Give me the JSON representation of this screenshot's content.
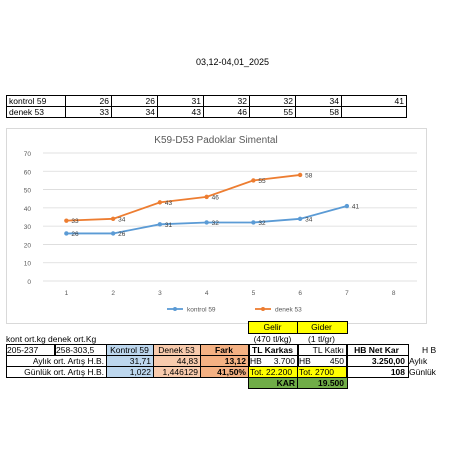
{
  "page": {
    "title": "03,12-04,01_2025"
  },
  "top_table": {
    "rows": [
      {
        "label": "kontrol 59",
        "values": [
          "26",
          "26",
          "31",
          "32",
          "32",
          "34",
          "41"
        ]
      },
      {
        "label": "denek 53",
        "values": [
          "33",
          "34",
          "43",
          "46",
          "55",
          "58",
          ""
        ]
      }
    ]
  },
  "chart_data": {
    "type": "line",
    "title": "K59-D53 Padoklar Simental",
    "x": [
      1,
      2,
      3,
      4,
      5,
      6,
      7,
      8
    ],
    "xlim": [
      0.5,
      8.5
    ],
    "ylim": [
      0,
      70
    ],
    "yticks": [
      0,
      10,
      20,
      30,
      40,
      50,
      60,
      70
    ],
    "grid": true,
    "legend": "bottom",
    "series": [
      {
        "name": "kontrol 59",
        "color": "#5b9bd5",
        "x": [
          1,
          2,
          3,
          4,
          5,
          6,
          7
        ],
        "values": [
          26,
          26,
          31,
          32,
          32,
          34,
          41
        ]
      },
      {
        "name": "denek 53",
        "color": "#ed7d31",
        "x": [
          1,
          2,
          3,
          4,
          5,
          6
        ],
        "values": [
          33,
          34,
          43,
          46,
          55,
          58
        ]
      }
    ]
  },
  "summary": {
    "gelir": "Gelir",
    "gider": "Gider",
    "gelir_unit": "(470 tl/kg)",
    "gider_unit": "(1 tl/gr)",
    "ort_header": "kont ort.kg denek ort.Kg",
    "range_kontrol": "205-237",
    "range_denek": "258-303,5",
    "col_kontrol": "Kontrol 59",
    "col_denek": "Denek 53",
    "col_fark": "Fark",
    "tl_karkas": "TL Karkas",
    "tl_katki": "TL Katkı",
    "hb_net_kar": "HB Net Kar",
    "hb_label": "H B",
    "row1_label": "Aylık ort. Artış H.B.",
    "row1_kontrol": "31,71",
    "row1_denek": "44,83",
    "row1_fark": "13,12",
    "row1_hb1": "HB",
    "row1_karkas": "3.700",
    "row1_hb2": "HB",
    "row1_katki": "450",
    "row1_net": "3.250,00",
    "row1_suffix": "Aylık",
    "row2_label": "Günlük ort. Artış H.B.",
    "row2_kontrol": "1,022",
    "row2_denek": "1,446129",
    "row2_fark": "41,50%",
    "row2_tot1": "Tot. 22.200",
    "row2_tot2": "Tot. 2700",
    "row2_net": "108",
    "row2_suffix": "Günlük",
    "kar_label": "KAR",
    "kar_value": "19.500"
  },
  "colors": {
    "yellow": "#ffff00",
    "light_blue": "#bdd7ee",
    "light_orange": "#f8cbad",
    "dark_orange": "#f4b183",
    "green": "#70ad47"
  }
}
